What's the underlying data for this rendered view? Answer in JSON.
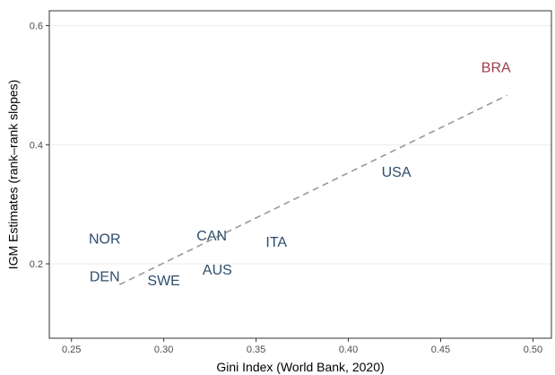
{
  "chart_data": {
    "type": "scatter",
    "title": "",
    "xlabel": "Gini Index (World Bank, 2020)",
    "ylabel": "IGM Estimates (rank–rank slopes)",
    "xlim": [
      0.238,
      0.51
    ],
    "ylim": [
      0.075,
      0.625
    ],
    "x_ticks": [
      0.25,
      0.3,
      0.35,
      0.4,
      0.45,
      0.5
    ],
    "x_tick_labels": [
      "0.25",
      "0.30",
      "0.35",
      "0.40",
      "0.45",
      "0.50"
    ],
    "y_ticks": [
      0.2,
      0.4,
      0.6
    ],
    "y_tick_labels": [
      "0.2",
      "0.4",
      "0.6"
    ],
    "grid": true,
    "points": [
      {
        "label": "NOR",
        "x": 0.268,
        "y": 0.243,
        "color": "#2e4d6b"
      },
      {
        "label": "DEN",
        "x": 0.268,
        "y": 0.18,
        "color": "#2e4d6b"
      },
      {
        "label": "SWE",
        "x": 0.3,
        "y": 0.173,
        "color": "#2e4d6b"
      },
      {
        "label": "CAN",
        "x": 0.326,
        "y": 0.248,
        "color": "#2e4d6b"
      },
      {
        "label": "AUS",
        "x": 0.329,
        "y": 0.191,
        "color": "#2e4d6b"
      },
      {
        "label": "ITA",
        "x": 0.361,
        "y": 0.238,
        "color": "#2e4d6b"
      },
      {
        "label": "USA",
        "x": 0.426,
        "y": 0.355,
        "color": "#2e4d6b"
      },
      {
        "label": "BRA",
        "x": 0.48,
        "y": 0.531,
        "color": "#9e3a4a"
      }
    ],
    "fit_line": {
      "x": [
        0.276,
        0.486
      ],
      "y": [
        0.165,
        0.483
      ],
      "color": "#999999",
      "style": "dashed"
    }
  }
}
